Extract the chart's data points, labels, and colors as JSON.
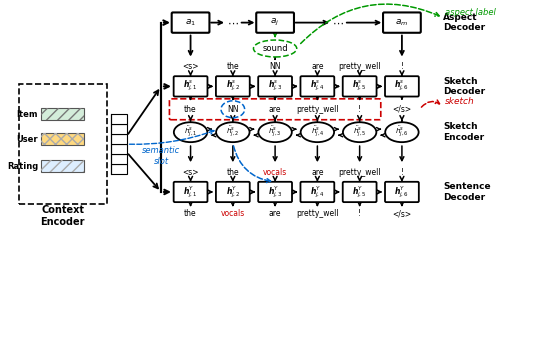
{
  "bg_color": "#ffffff",
  "aspect_nodes": [
    "$\\boldsymbol{a_1}$",
    "$\\cdots$",
    "$\\boldsymbol{a_j}$",
    "$\\cdots$",
    "$\\boldsymbol{a_m}$"
  ],
  "sketch_decoder_nodes": [
    "$\\boldsymbol{h}^s_{j,1}$",
    "$\\boldsymbol{h}^s_{j,2}$",
    "$\\boldsymbol{h}^s_{j,3}$",
    "$\\boldsymbol{h}^s_{j,4}$",
    "$\\boldsymbol{h}^s_{j,5}$",
    "$\\boldsymbol{h}^s_{j,6}$"
  ],
  "sketch_encoder_nodes": [
    "$\\boldsymbol{\\ddot{h}}^s_{j,1}$",
    "$\\boldsymbol{\\ddot{h}}^s_{j,2}$",
    "$\\boldsymbol{\\ddot{h}}^s_{j,3}$",
    "$\\boldsymbol{\\ddot{h}}^s_{j,4}$",
    "$\\boldsymbol{\\ddot{h}}^s_{j,5}$",
    "$\\boldsymbol{\\ddot{h}}^s_{j,6}$"
  ],
  "sentence_decoder_nodes": [
    "$\\boldsymbol{h}^Y_{j,1}$",
    "$\\boldsymbol{h}^Y_{j,2}$",
    "$\\boldsymbol{h}^Y_{j,3}$",
    "$\\boldsymbol{h}^Y_{j,4}$",
    "$\\boldsymbol{h}^Y_{j,5}$",
    "$\\boldsymbol{h}^Y_{j,6}$"
  ],
  "sketch_dec_input": [
    "<s>",
    "the",
    "NN",
    "are",
    "pretty_well",
    "!"
  ],
  "sketch_text_row": [
    "the",
    "NN",
    "are",
    "pretty_well",
    "!",
    "</s>"
  ],
  "sent_dec_input": [
    "<s>",
    "the",
    "vocals",
    "are",
    "pretty_well",
    "!"
  ],
  "sent_dec_output": [
    "the",
    "vocals",
    "are",
    "pretty_well",
    "!",
    "</s>"
  ],
  "sent_input_colors": [
    "#000000",
    "#000000",
    "#cc0000",
    "#000000",
    "#000000",
    "#000000"
  ],
  "sent_output_colors": [
    "#000000",
    "#cc0000",
    "#000000",
    "#000000",
    "#000000",
    "#000000"
  ],
  "green": "#009900",
  "red": "#cc0000",
  "blue": "#0066cc",
  "black": "#000000"
}
